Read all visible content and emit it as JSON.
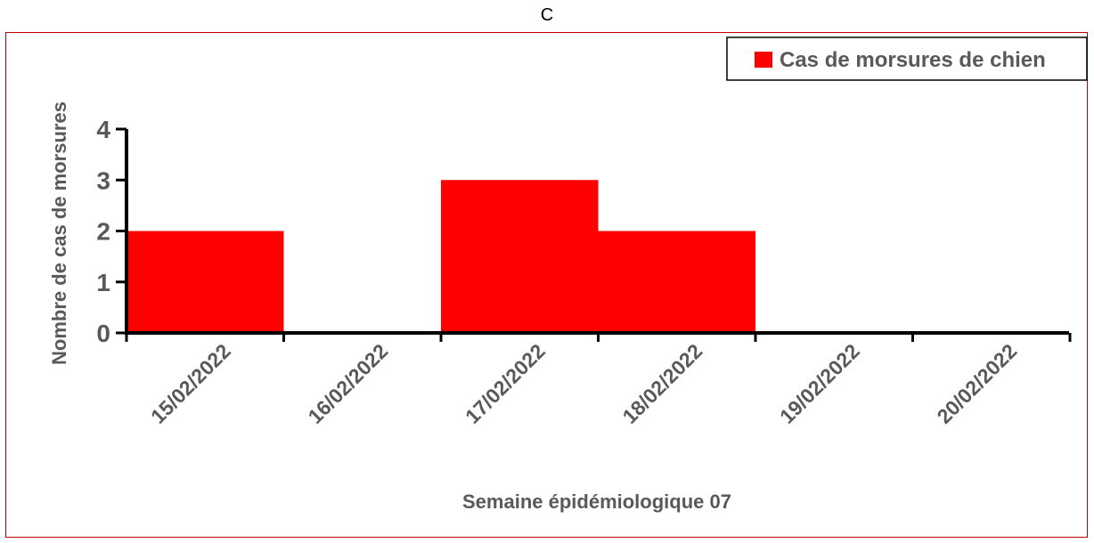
{
  "panel_label": "C",
  "colors": {
    "bar": "#ff0000",
    "frame": "#c00000",
    "axis": "#000000",
    "text": "#595959"
  },
  "chart_data": {
    "type": "bar",
    "categories": [
      "15/02/2022",
      "16/02/2022",
      "17/02/2022",
      "18/02/2022",
      "19/02/2022",
      "20/02/2022"
    ],
    "series": [
      {
        "name": "Cas de morsures de chien",
        "values": [
          2,
          0,
          3,
          2,
          0,
          0
        ]
      }
    ],
    "y_ticks": [
      "0",
      "1",
      "2",
      "3",
      "4"
    ],
    "xlabel": "Semaine épidémiologique 07",
    "ylabel": "Nombre de cas de morsures",
    "ylim": [
      0,
      4
    ],
    "grid": false,
    "legend_position": "top-right"
  }
}
